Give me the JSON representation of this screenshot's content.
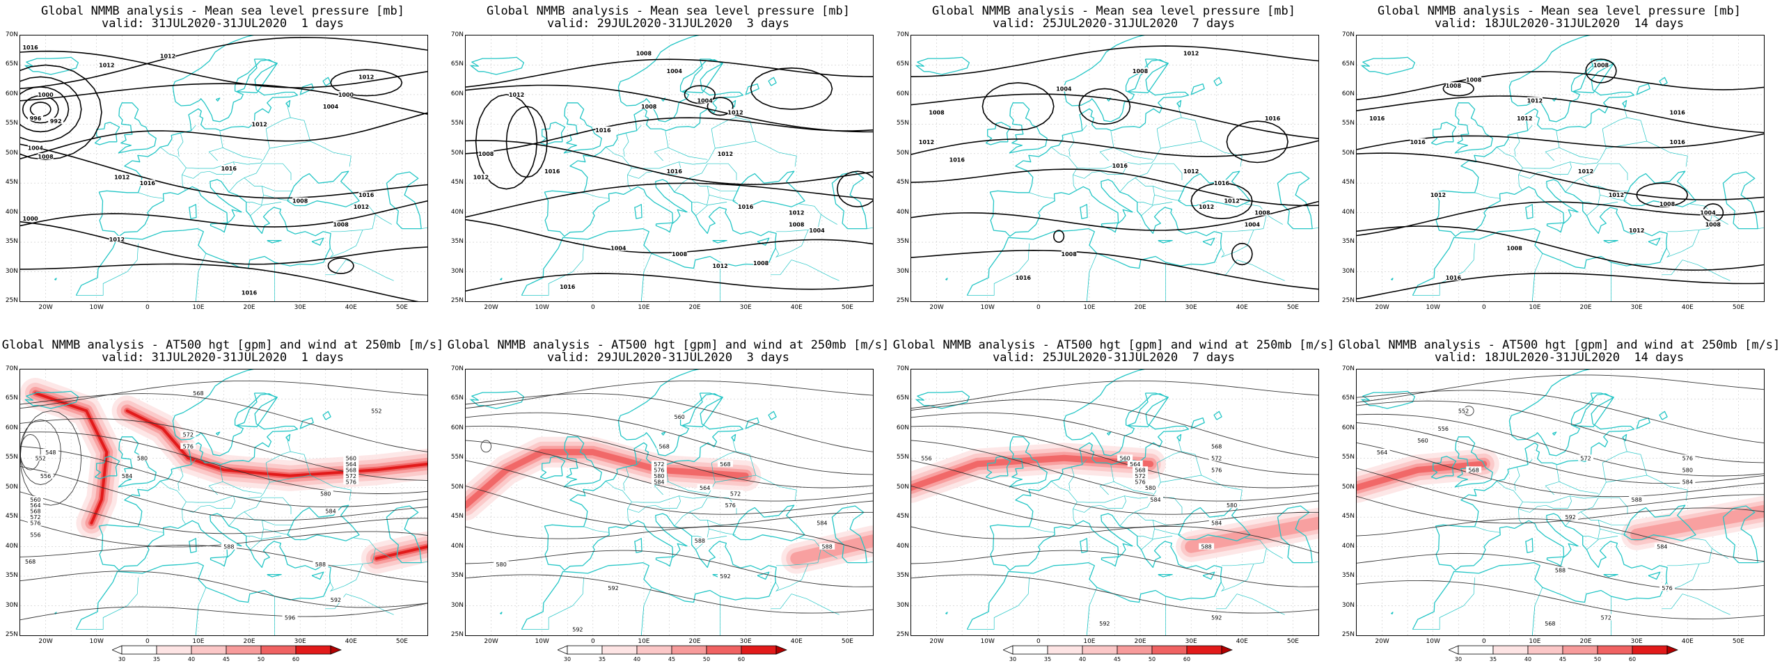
{
  "panels": [
    {
      "title_line1": "Global NMMB analysis - Mean sea level pressure [mb]",
      "title_line2": "valid: 31JUL2020-31JUL2020  1 days",
      "field": "slp",
      "labels": [
        "1016",
        "1012",
        "1012",
        "1000",
        "996",
        "992",
        "1004",
        "1008",
        "1012",
        "1016",
        "1016",
        "1012",
        "1012",
        "1000",
        "1004",
        "1008",
        "1016",
        "1012",
        "1008",
        "1000",
        "1012",
        "1016"
      ]
    },
    {
      "title_line1": "Global NMMB analysis - Mean sea level pressure [mb]",
      "title_line2": "valid: 29JUL2020-31JUL2020  3 days",
      "field": "slp",
      "labels": [
        "1008",
        "1012",
        "1008",
        "1012",
        "1004",
        "1004",
        "1008",
        "1012",
        "1016",
        "1016",
        "1016",
        "1012",
        "1016",
        "1012",
        "1008",
        "1004",
        "1008",
        "1012",
        "1008",
        "1004",
        "1016"
      ]
    },
    {
      "title_line1": "Global NMMB analysis - Mean sea level pressure [mb]",
      "title_line2": "valid: 25JUL2020-31JUL2020  7 days",
      "field": "slp",
      "labels": [
        "1016",
        "1008",
        "1004",
        "1008",
        "1012",
        "1016",
        "1016",
        "1016",
        "1012",
        "1016",
        "1012",
        "1012",
        "1008",
        "1004",
        "1008",
        "1016",
        "1012",
        "1008"
      ]
    },
    {
      "title_line1": "Global NMMB analysis - Mean sea level pressure [mb]",
      "title_line2": "valid: 18JUL2020-31JUL2020  14 days",
      "field": "slp",
      "labels": [
        "1008",
        "1008",
        "1008",
        "1012",
        "1016",
        "1012",
        "1016",
        "1016",
        "1016",
        "1012",
        "1012",
        "1012",
        "1008",
        "1004",
        "1008",
        "1012",
        "1008",
        "1016"
      ]
    },
    {
      "title_line1": "Global NMMB analysis - AT500 hgt [gpm] and wind at 250mb [m/s]",
      "title_line2": "valid: 31JUL2020-31JUL2020  1 days",
      "field": "hgt",
      "labels": [
        "568",
        "552",
        "572",
        "576",
        "548",
        "552",
        "556",
        "580",
        "584",
        "560",
        "564",
        "568",
        "572",
        "576",
        "556",
        "560",
        "564",
        "568",
        "572",
        "576",
        "580",
        "584",
        "588",
        "568",
        "588",
        "592",
        "596"
      ]
    },
    {
      "title_line1": "Global NMMB analysis - AT500 hgt [gpm] and wind at 250mb [m/s]",
      "title_line2": "valid: 29JUL2020-31JUL2020  3 days",
      "field": "hgt",
      "labels": [
        "560",
        "568",
        "572",
        "576",
        "580",
        "584",
        "564",
        "568",
        "572",
        "576",
        "580",
        "588",
        "584",
        "588",
        "592",
        "592",
        "592"
      ]
    },
    {
      "title_line1": "Global NMMB analysis - AT500 hgt [gpm] and wind at 250mb [m/s]",
      "title_line2": "valid: 25JUL2020-31JUL2020  7 days",
      "field": "hgt",
      "labels": [
        "568",
        "572",
        "576",
        "580",
        "584",
        "556",
        "560",
        "564",
        "568",
        "572",
        "576",
        "580",
        "584",
        "588",
        "592",
        "592"
      ]
    },
    {
      "title_line1": "Global NMMB analysis - AT500 hgt [gpm] and wind at 250mb [m/s]",
      "title_line2": "valid: 18JUL2020-31JUL2020  14 days",
      "field": "hgt",
      "labels": [
        "552",
        "556",
        "560",
        "564",
        "568",
        "572",
        "576",
        "580",
        "584",
        "588",
        "592",
        "588",
        "584",
        "576",
        "572",
        "568"
      ]
    }
  ],
  "lat_labels": [
    "70N",
    "65N",
    "60N",
    "55N",
    "50N",
    "45N",
    "40N",
    "35N",
    "30N",
    "25N"
  ],
  "lon_labels": [
    "20W",
    "10W",
    "0",
    "10E",
    "20E",
    "30E",
    "40E",
    "50E"
  ],
  "colorbar": {
    "ticks": [
      "30",
      "35",
      "40",
      "45",
      "50",
      "60"
    ],
    "colors": [
      "#ffffff",
      "#fde4e4",
      "#fbc7c7",
      "#f79b9b",
      "#f06262",
      "#e21a1a",
      "#b20000"
    ]
  },
  "colors": {
    "coast": "#22c5c5",
    "contour": "#000000",
    "grid": "#c8c8c8",
    "jet": "#e21a1a"
  }
}
